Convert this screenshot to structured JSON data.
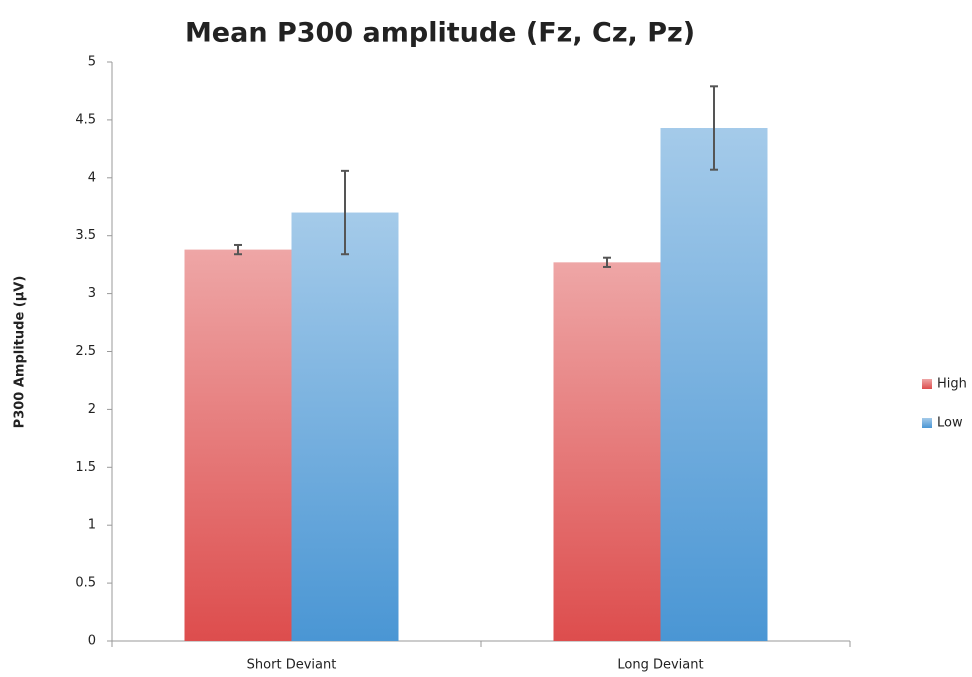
{
  "chart_data": {
    "type": "bar",
    "title": "Mean P300 amplitude (Fz, Cz, Pz)",
    "y_label": "P300 Amplitude (µV)",
    "categories": [
      "Short Deviant",
      "Long Deviant"
    ],
    "series": [
      {
        "name": "High",
        "color": "#dd4d4d",
        "values": [
          3.38,
          3.27
        ],
        "errors": [
          0.04,
          0.04
        ]
      },
      {
        "name": "Low",
        "color": "#4a96d4",
        "values": [
          3.7,
          4.43
        ],
        "errors": [
          0.36,
          0.36
        ]
      }
    ],
    "ylim": [
      0,
      5
    ],
    "yticks": [
      0,
      0.5,
      1,
      1.5,
      2,
      2.5,
      3,
      3.5,
      4,
      4.5,
      5
    ],
    "legend": "right"
  }
}
